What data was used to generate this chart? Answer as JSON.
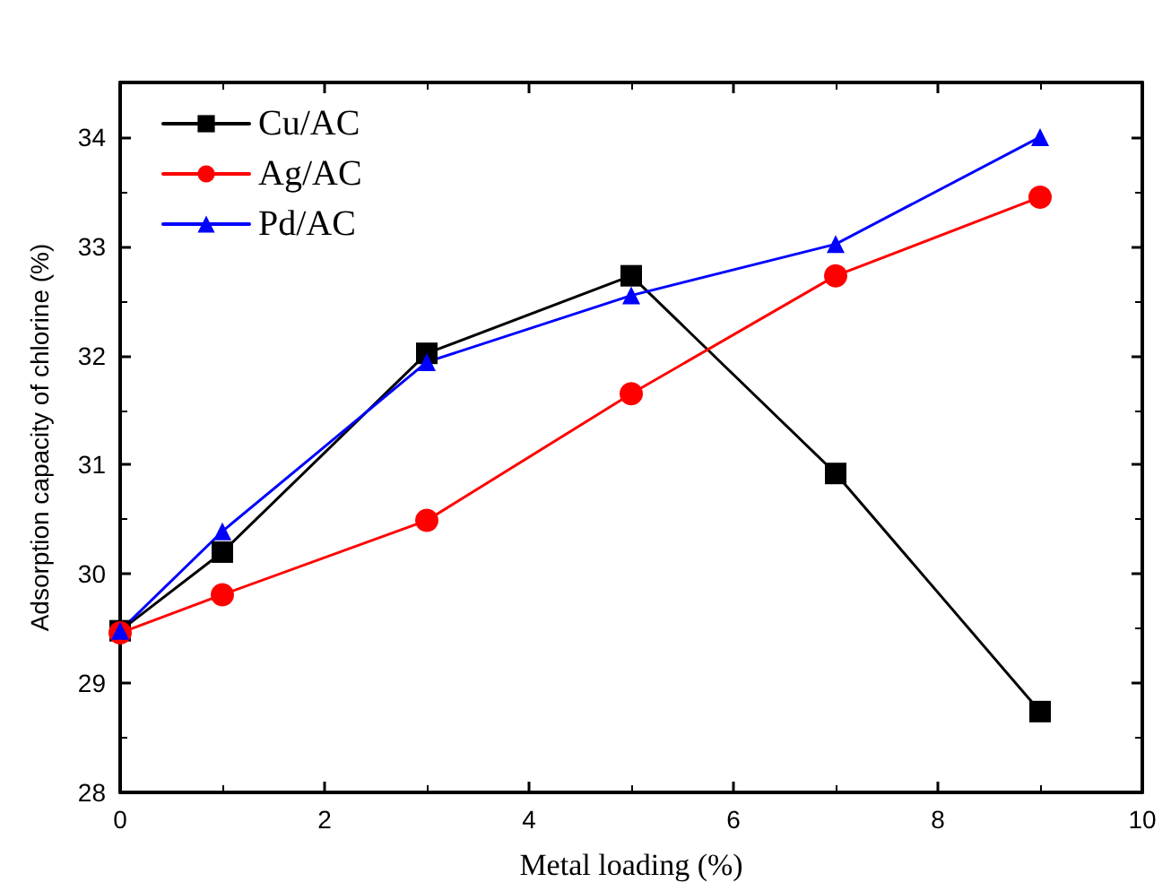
{
  "chart_data": {
    "type": "line",
    "xlabel": "Metal loading (%)",
    "ylabel": "Adsorption capacity of chlorine (%)",
    "x": [
      0,
      1,
      3,
      5,
      7,
      9
    ],
    "series": [
      {
        "name": "Cu/AC",
        "color": "#000000",
        "marker": "square",
        "values": [
          29.48,
          30.2,
          32.02,
          32.73,
          30.92,
          28.74
        ]
      },
      {
        "name": "Ag/AC",
        "color": "#ff0000",
        "marker": "circle",
        "values": [
          29.46,
          29.81,
          30.49,
          31.65,
          32.73,
          33.45
        ]
      },
      {
        "name": "Pd/AC",
        "color": "#0000ff",
        "marker": "triangle",
        "values": [
          29.48,
          30.39,
          31.94,
          32.55,
          33.02,
          34.0
        ]
      }
    ],
    "xlim": [
      0,
      10
    ],
    "xticks": [
      0,
      2,
      4,
      6,
      8,
      10
    ],
    "ylim": [
      28,
      34.5
    ],
    "yticks": [
      28,
      29,
      30,
      31,
      32,
      33,
      34
    ],
    "grid": false,
    "legend": "top left",
    "line_style": "solid"
  }
}
